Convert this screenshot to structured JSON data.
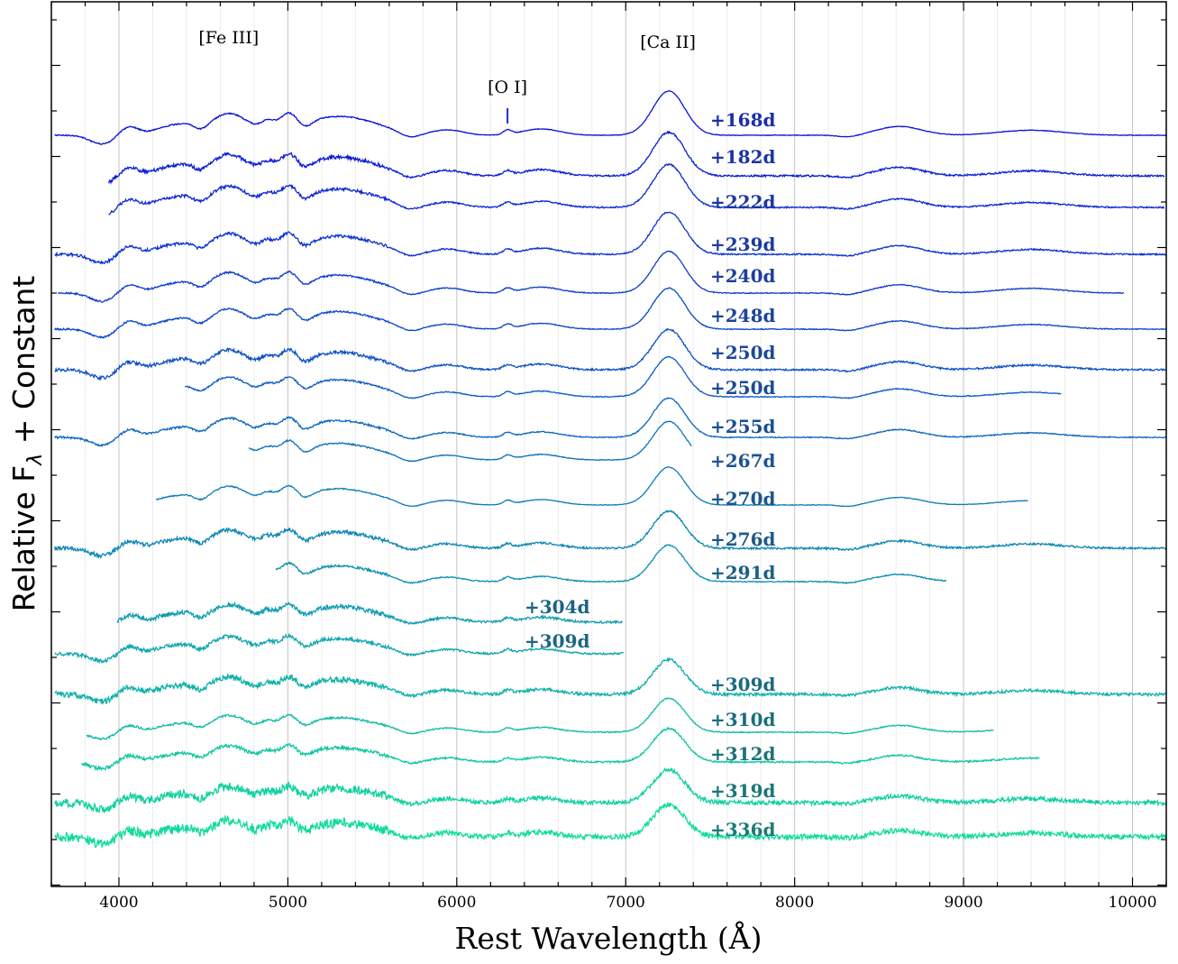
{
  "chart_data": {
    "type": "line",
    "xlabel": "Rest Wavelength (Å)",
    "ylabel": "Relative F",
    "ylabel_sub": "λ",
    "ylabel_suffix": " + Constant",
    "xlim": [
      3600,
      10200
    ],
    "xticks": [
      4000,
      5000,
      6000,
      7000,
      8000,
      9000,
      10000
    ],
    "xtick_labels": [
      "4000",
      "5000",
      "6000",
      "7000",
      "8000",
      "9000",
      "10000"
    ],
    "grid": "vertical, every 200 Å",
    "line_annotations": [
      {
        "text": "[Fe III]",
        "x": 4650
      },
      {
        "text": "[O I]",
        "x": 6300
      },
      {
        "text": "[Ca II]",
        "x": 7250
      }
    ],
    "colors": {
      "start": "#0a12d8",
      "end": "#0fdb9c",
      "label": "#1a3d78"
    },
    "series": [
      {
        "name": "+168d",
        "x_range": [
          3620,
          10200
        ],
        "noise": 0.4
      },
      {
        "name": "+182d",
        "x_range": [
          3940,
          10190
        ],
        "noise": 1.2
      },
      {
        "name": "+222d",
        "x_range": [
          3940,
          10190
        ],
        "noise": 1.0
      },
      {
        "name": "+239d",
        "x_range": [
          3620,
          10200
        ],
        "noise": 1.0
      },
      {
        "name": "+240d",
        "x_range": [
          3640,
          9950
        ],
        "noise": 0.6
      },
      {
        "name": "+248d",
        "x_range": [
          3620,
          10200
        ],
        "noise": 0.6
      },
      {
        "name": "+250d",
        "x_range": [
          3620,
          10200
        ],
        "noise": 1.2
      },
      {
        "name": "+250d",
        "x_range": [
          4390,
          9580
        ],
        "noise": 0.6
      },
      {
        "name": "+255d",
        "x_range": [
          3620,
          10200
        ],
        "noise": 0.7
      },
      {
        "name": "+267d",
        "x_range": [
          4770,
          7390
        ],
        "noise": 0.5
      },
      {
        "name": "+270d",
        "x_range": [
          4220,
          9380
        ],
        "noise": 0.4
      },
      {
        "name": "+276d",
        "x_range": [
          3620,
          10200
        ],
        "noise": 1.4
      },
      {
        "name": "+291d",
        "x_range": [
          4930,
          8900
        ],
        "noise": 0.8
      },
      {
        "name": "+304d",
        "x_range": [
          3990,
          6980
        ],
        "noise": 1.6
      },
      {
        "name": "+309d",
        "x_range": [
          3620,
          6990
        ],
        "noise": 1.3
      },
      {
        "name": "+309d",
        "x_range": [
          3620,
          10200
        ],
        "noise": 2.0
      },
      {
        "name": "+310d",
        "x_range": [
          3810,
          9180
        ],
        "noise": 0.7
      },
      {
        "name": "+312d",
        "x_range": [
          3780,
          9450
        ],
        "noise": 1.2
      },
      {
        "name": "+319d",
        "x_range": [
          3620,
          10200
        ],
        "noise": 3.0
      },
      {
        "name": "+336d",
        "x_range": [
          3620,
          10200
        ],
        "noise": 3.5
      }
    ]
  }
}
